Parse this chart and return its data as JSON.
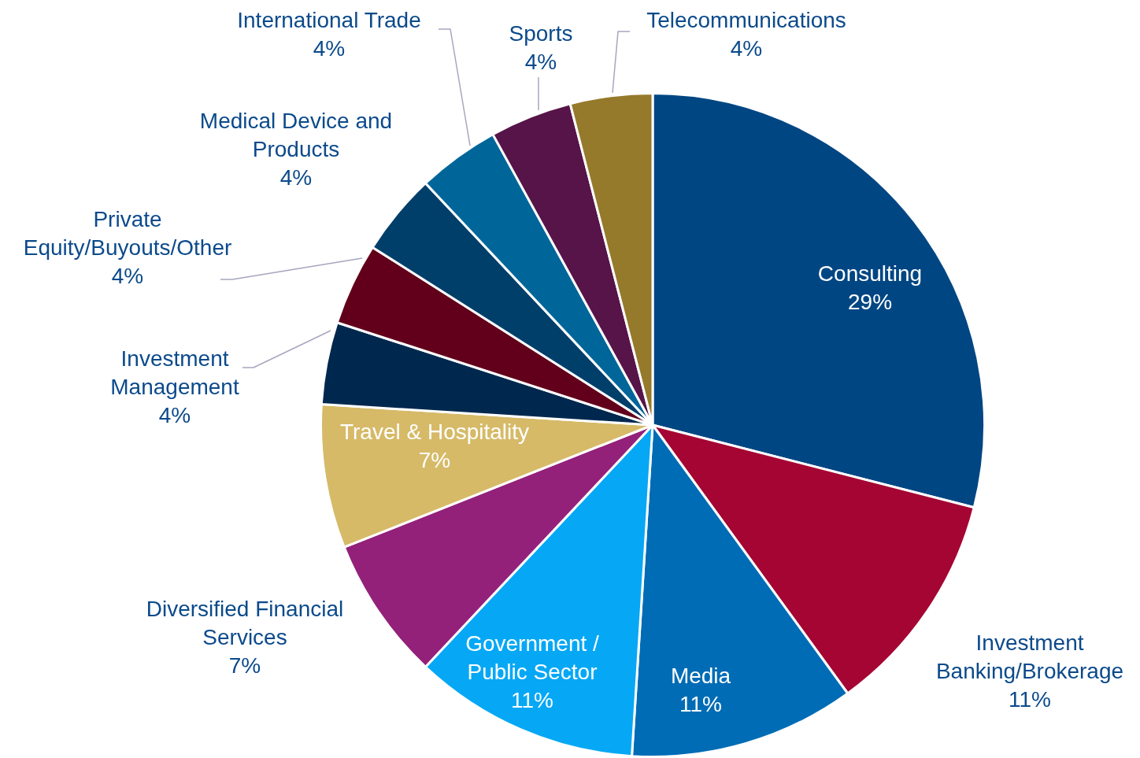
{
  "chart_data": {
    "type": "pie",
    "categories": [
      "Consulting",
      "Investment Banking/Brokerage",
      "Media",
      "Government / Public Sector",
      "Diversified Financial Services",
      "Travel & Hospitality",
      "Investment Management",
      "Private Equity/Buyouts/Other",
      "Medical Device and Products",
      "International Trade",
      "Sports",
      "Telecommunications"
    ],
    "values": [
      29,
      11,
      11,
      11,
      7,
      7,
      4,
      4,
      4,
      4,
      4,
      4
    ],
    "value_labels": [
      "29%",
      "11%",
      "11%",
      "11%",
      "7%",
      "7%",
      "4%",
      "4%",
      "4%",
      "4%",
      "4%",
      "4%"
    ],
    "colors": [
      "#004683",
      "#a50533",
      "#006cb5",
      "#06a8f5",
      "#93217a",
      "#d6ba68",
      "#00284e",
      "#62001b",
      "#013f6b",
      "#006699",
      "#571448",
      "#957a2b"
    ],
    "legend": false
  }
}
